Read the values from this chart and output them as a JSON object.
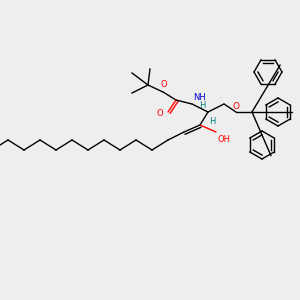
{
  "background_color": "#eeeeee",
  "atom_colors": {
    "C": "#000000",
    "O": "#ff0000",
    "N": "#0000cd",
    "H": "#008080"
  },
  "figsize": [
    3.0,
    3.0
  ],
  "dpi": 100,
  "xlim": [
    0,
    300
  ],
  "ylim": [
    0,
    300
  ]
}
